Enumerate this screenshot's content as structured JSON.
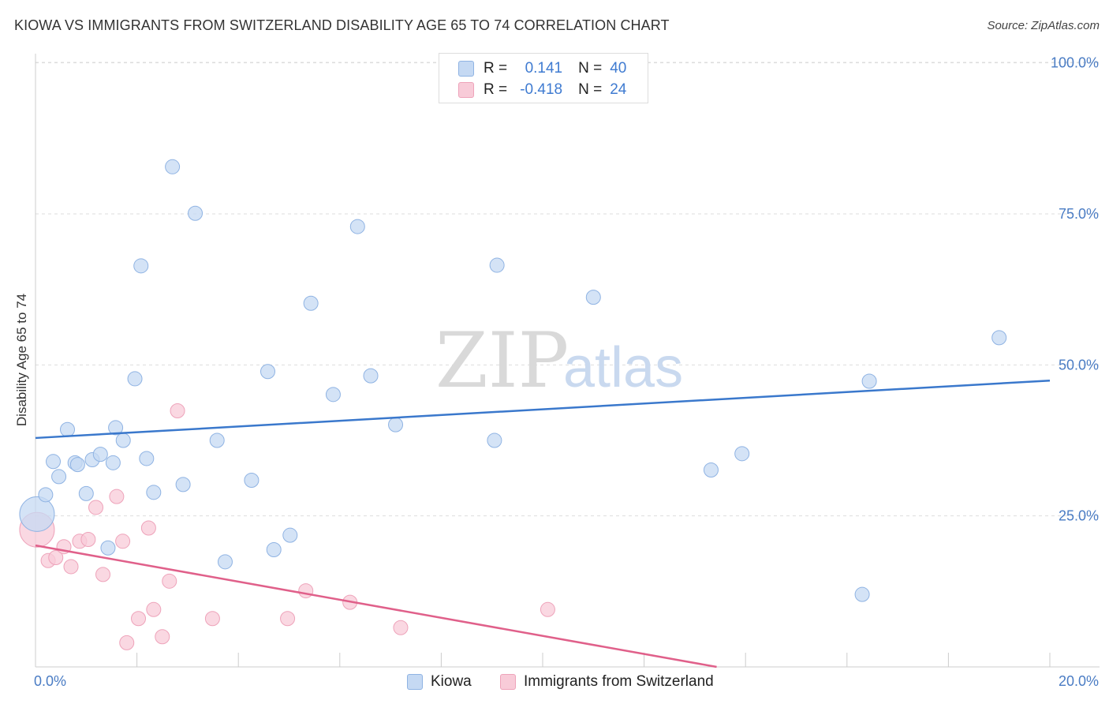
{
  "title": "KIOWA VS IMMIGRANTS FROM SWITZERLAND DISABILITY AGE 65 TO 74 CORRELATION CHART",
  "source": "Source: ZipAtlas.com",
  "watermark": {
    "zip": "ZIP",
    "atlas": "atlas"
  },
  "legend": {
    "rows": [
      {
        "r_label": "R =",
        "r_value": "0.141",
        "n_label": "N =",
        "n_value": "40"
      },
      {
        "r_label": "R =",
        "r_value": "-0.418",
        "n_label": "N =",
        "n_value": "24"
      }
    ]
  },
  "colors": {
    "kiowa_fill": "#c5d9f3",
    "kiowa_stroke": "#8fb3e3",
    "kiowa_line": "#3a78cc",
    "swiss_fill": "#f8cbd8",
    "swiss_stroke": "#eea3ba",
    "swiss_line": "#e0608a",
    "grid": "#dddddd",
    "axis_label": "#4a7cc4"
  },
  "chart_data": {
    "type": "scatter",
    "title": "KIOWA VS IMMIGRANTS FROM SWITZERLAND DISABILITY AGE 65 TO 74 CORRELATION CHART",
    "xlabel": "",
    "ylabel": "Disability Age 65 to 74",
    "xlim": [
      0,
      20
    ],
    "ylim": [
      0,
      100
    ],
    "x_tick_labels": [
      "0.0%",
      "20.0%"
    ],
    "y_ticks": [
      25,
      50,
      75,
      100
    ],
    "y_tick_labels": [
      "25.0%",
      "50.0%",
      "75.0%",
      "100.0%"
    ],
    "series": [
      {
        "name": "Kiowa",
        "r": 0.141,
        "n": 40,
        "trend": {
          "x": [
            0,
            20
          ],
          "y": [
            37.9,
            47.4
          ]
        },
        "points": [
          {
            "x": 0.03,
            "y": 25.3,
            "big": true
          },
          {
            "x": 0.2,
            "y": 28.5
          },
          {
            "x": 0.35,
            "y": 34.0
          },
          {
            "x": 0.46,
            "y": 31.5
          },
          {
            "x": 0.63,
            "y": 39.3
          },
          {
            "x": 0.78,
            "y": 33.8
          },
          {
            "x": 0.83,
            "y": 33.5
          },
          {
            "x": 1.0,
            "y": 28.7
          },
          {
            "x": 1.12,
            "y": 34.3
          },
          {
            "x": 1.28,
            "y": 35.2
          },
          {
            "x": 1.43,
            "y": 19.7
          },
          {
            "x": 1.53,
            "y": 33.8
          },
          {
            "x": 1.58,
            "y": 39.6
          },
          {
            "x": 1.73,
            "y": 37.5
          },
          {
            "x": 1.96,
            "y": 47.7
          },
          {
            "x": 2.08,
            "y": 66.4
          },
          {
            "x": 2.19,
            "y": 34.5
          },
          {
            "x": 2.33,
            "y": 28.9
          },
          {
            "x": 2.7,
            "y": 82.8
          },
          {
            "x": 2.91,
            "y": 30.2
          },
          {
            "x": 3.15,
            "y": 75.1
          },
          {
            "x": 3.58,
            "y": 37.5
          },
          {
            "x": 3.74,
            "y": 17.4
          },
          {
            "x": 4.26,
            "y": 30.9
          },
          {
            "x": 4.58,
            "y": 48.9
          },
          {
            "x": 4.7,
            "y": 19.4
          },
          {
            "x": 5.02,
            "y": 21.8
          },
          {
            "x": 5.43,
            "y": 60.2
          },
          {
            "x": 5.87,
            "y": 45.1
          },
          {
            "x": 6.35,
            "y": 72.9
          },
          {
            "x": 6.61,
            "y": 48.2
          },
          {
            "x": 7.1,
            "y": 40.1
          },
          {
            "x": 9.05,
            "y": 37.5
          },
          {
            "x": 9.1,
            "y": 66.5
          },
          {
            "x": 11.0,
            "y": 61.2
          },
          {
            "x": 13.32,
            "y": 32.6
          },
          {
            "x": 13.93,
            "y": 35.3
          },
          {
            "x": 16.3,
            "y": 12.0
          },
          {
            "x": 16.44,
            "y": 47.3
          },
          {
            "x": 19.0,
            "y": 54.5
          }
        ]
      },
      {
        "name": "Immigrants from Switzerland",
        "r": -0.418,
        "n": 24,
        "trend": {
          "x": [
            0,
            13.43
          ],
          "y": [
            20.1,
            0
          ]
        },
        "points": [
          {
            "x": 0.03,
            "y": 22.7,
            "big": true
          },
          {
            "x": 0.25,
            "y": 17.6
          },
          {
            "x": 0.4,
            "y": 18.1
          },
          {
            "x": 0.56,
            "y": 19.9
          },
          {
            "x": 0.7,
            "y": 16.6
          },
          {
            "x": 0.87,
            "y": 20.8
          },
          {
            "x": 1.04,
            "y": 21.1
          },
          {
            "x": 1.19,
            "y": 26.4
          },
          {
            "x": 1.33,
            "y": 15.3
          },
          {
            "x": 1.6,
            "y": 28.2
          },
          {
            "x": 1.72,
            "y": 20.8
          },
          {
            "x": 1.8,
            "y": 4.0
          },
          {
            "x": 2.03,
            "y": 8.0
          },
          {
            "x": 2.23,
            "y": 23.0
          },
          {
            "x": 2.33,
            "y": 9.5
          },
          {
            "x": 2.5,
            "y": 5.0
          },
          {
            "x": 2.64,
            "y": 14.2
          },
          {
            "x": 2.8,
            "y": 42.4
          },
          {
            "x": 3.49,
            "y": 8.0
          },
          {
            "x": 4.97,
            "y": 8.0
          },
          {
            "x": 5.33,
            "y": 12.6
          },
          {
            "x": 6.2,
            "y": 10.7
          },
          {
            "x": 7.2,
            "y": 6.5
          },
          {
            "x": 10.1,
            "y": 9.5
          }
        ]
      }
    ]
  }
}
